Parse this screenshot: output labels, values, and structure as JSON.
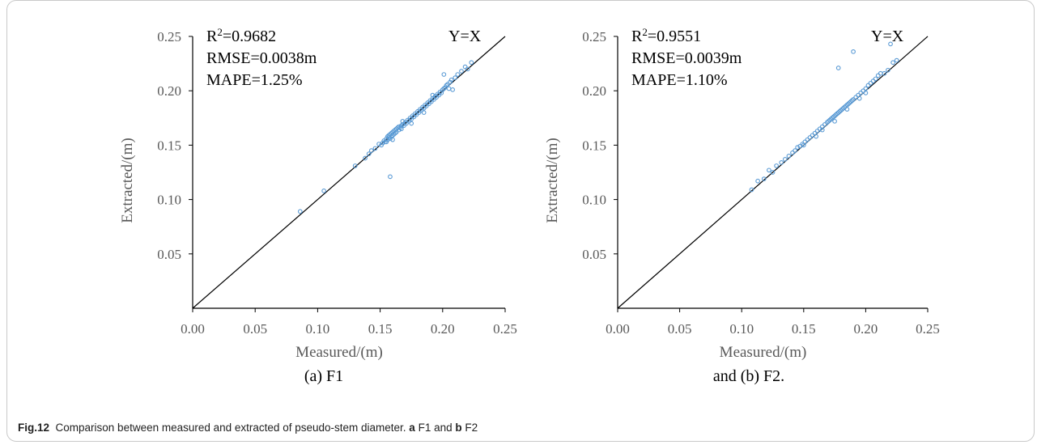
{
  "chart_data": [
    {
      "type": "scatter",
      "subcaption": "(a) F1",
      "xlabel": "Measured/(m)",
      "ylabel": "Extracted/(m)",
      "xlim": [
        0,
        0.25
      ],
      "ylim": [
        0,
        0.25
      ],
      "xticks": [
        "0.00",
        "0.05",
        "0.10",
        "0.15",
        "0.20",
        "0.25"
      ],
      "yticks": [
        "0.05",
        "0.10",
        "0.15",
        "0.20",
        "0.25"
      ],
      "reference_line": "Y=X",
      "stats": {
        "r2_prefix": "R",
        "r2_sup": "2",
        "r2_value": "=0.9682",
        "rmse": "RMSE=0.0038m",
        "mape": "MAPE=1.25%"
      },
      "point_color": "#5b9bd5",
      "points": [
        [
          0.086,
          0.089
        ],
        [
          0.105,
          0.108
        ],
        [
          0.13,
          0.131
        ],
        [
          0.138,
          0.138
        ],
        [
          0.141,
          0.142
        ],
        [
          0.143,
          0.145
        ],
        [
          0.146,
          0.147
        ],
        [
          0.149,
          0.151
        ],
        [
          0.151,
          0.15
        ],
        [
          0.152,
          0.152
        ],
        [
          0.153,
          0.154
        ],
        [
          0.154,
          0.153
        ],
        [
          0.155,
          0.156
        ],
        [
          0.155,
          0.153
        ],
        [
          0.156,
          0.158
        ],
        [
          0.156,
          0.155
        ],
        [
          0.157,
          0.157
        ],
        [
          0.157,
          0.159
        ],
        [
          0.158,
          0.121
        ],
        [
          0.158,
          0.156
        ],
        [
          0.158,
          0.16
        ],
        [
          0.159,
          0.158
        ],
        [
          0.159,
          0.161
        ],
        [
          0.16,
          0.159
        ],
        [
          0.16,
          0.162
        ],
        [
          0.161,
          0.16
        ],
        [
          0.161,
          0.163
        ],
        [
          0.162,
          0.161
        ],
        [
          0.162,
          0.164
        ],
        [
          0.163,
          0.165
        ],
        [
          0.163,
          0.162
        ],
        [
          0.164,
          0.166
        ],
        [
          0.165,
          0.164
        ],
        [
          0.165,
          0.167
        ],
        [
          0.166,
          0.166
        ],
        [
          0.167,
          0.168
        ],
        [
          0.167,
          0.165
        ],
        [
          0.168,
          0.169
        ],
        [
          0.169,
          0.168
        ],
        [
          0.17,
          0.171
        ],
        [
          0.171,
          0.17
        ],
        [
          0.172,
          0.173
        ],
        [
          0.173,
          0.172
        ],
        [
          0.174,
          0.175
        ],
        [
          0.175,
          0.174
        ],
        [
          0.176,
          0.177
        ],
        [
          0.177,
          0.176
        ],
        [
          0.178,
          0.179
        ],
        [
          0.179,
          0.178
        ],
        [
          0.18,
          0.181
        ],
        [
          0.181,
          0.18
        ],
        [
          0.182,
          0.183
        ],
        [
          0.183,
          0.182
        ],
        [
          0.184,
          0.185
        ],
        [
          0.185,
          0.184
        ],
        [
          0.186,
          0.187
        ],
        [
          0.187,
          0.186
        ],
        [
          0.188,
          0.189
        ],
        [
          0.189,
          0.188
        ],
        [
          0.19,
          0.191
        ],
        [
          0.191,
          0.19
        ],
        [
          0.192,
          0.193
        ],
        [
          0.193,
          0.192
        ],
        [
          0.194,
          0.195
        ],
        [
          0.195,
          0.194
        ],
        [
          0.196,
          0.197
        ],
        [
          0.197,
          0.196
        ],
        [
          0.198,
          0.199
        ],
        [
          0.199,
          0.198
        ],
        [
          0.2,
          0.201
        ],
        [
          0.201,
          0.202
        ],
        [
          0.202,
          0.203
        ],
        [
          0.203,
          0.205
        ],
        [
          0.204,
          0.206
        ],
        [
          0.205,
          0.202
        ],
        [
          0.206,
          0.208
        ],
        [
          0.207,
          0.21
        ],
        [
          0.208,
          0.201
        ],
        [
          0.21,
          0.212
        ],
        [
          0.212,
          0.215
        ],
        [
          0.215,
          0.218
        ],
        [
          0.218,
          0.222
        ],
        [
          0.22,
          0.22
        ],
        [
          0.223,
          0.226
        ],
        [
          0.201,
          0.215
        ],
        [
          0.175,
          0.17
        ],
        [
          0.168,
          0.172
        ],
        [
          0.185,
          0.18
        ],
        [
          0.192,
          0.196
        ],
        [
          0.16,
          0.155
        ]
      ]
    },
    {
      "type": "scatter",
      "subcaption": "and (b) F2.",
      "xlabel": "Measured/(m)",
      "ylabel": "Extracted/(m)",
      "xlim": [
        0,
        0.25
      ],
      "ylim": [
        0,
        0.25
      ],
      "xticks": [
        "0.00",
        "0.05",
        "0.10",
        "0.15",
        "0.20",
        "0.25"
      ],
      "yticks": [
        "0.05",
        "0.10",
        "0.15",
        "0.20",
        "0.25"
      ],
      "reference_line": "Y=X",
      "stats": {
        "r2_prefix": "R",
        "r2_sup": "2",
        "r2_value": "=0.9551",
        "rmse": "RMSE=0.0039m",
        "mape": "MAPE=1.10%"
      },
      "point_color": "#5b9bd5",
      "points": [
        [
          0.108,
          0.109
        ],
        [
          0.113,
          0.117
        ],
        [
          0.118,
          0.119
        ],
        [
          0.122,
          0.127
        ],
        [
          0.125,
          0.125
        ],
        [
          0.128,
          0.131
        ],
        [
          0.132,
          0.134
        ],
        [
          0.135,
          0.137
        ],
        [
          0.138,
          0.14
        ],
        [
          0.141,
          0.143
        ],
        [
          0.143,
          0.145
        ],
        [
          0.145,
          0.148
        ],
        [
          0.147,
          0.149
        ],
        [
          0.149,
          0.151
        ],
        [
          0.151,
          0.153
        ],
        [
          0.153,
          0.155
        ],
        [
          0.155,
          0.157
        ],
        [
          0.157,
          0.159
        ],
        [
          0.159,
          0.161
        ],
        [
          0.161,
          0.163
        ],
        [
          0.163,
          0.165
        ],
        [
          0.165,
          0.167
        ],
        [
          0.167,
          0.169
        ],
        [
          0.169,
          0.171
        ],
        [
          0.17,
          0.172
        ],
        [
          0.171,
          0.173
        ],
        [
          0.172,
          0.174
        ],
        [
          0.173,
          0.175
        ],
        [
          0.174,
          0.176
        ],
        [
          0.175,
          0.177
        ],
        [
          0.176,
          0.178
        ],
        [
          0.177,
          0.179
        ],
        [
          0.178,
          0.18
        ],
        [
          0.179,
          0.181
        ],
        [
          0.18,
          0.182
        ],
        [
          0.181,
          0.183
        ],
        [
          0.182,
          0.184
        ],
        [
          0.183,
          0.185
        ],
        [
          0.184,
          0.186
        ],
        [
          0.185,
          0.187
        ],
        [
          0.186,
          0.188
        ],
        [
          0.187,
          0.189
        ],
        [
          0.188,
          0.19
        ],
        [
          0.189,
          0.191
        ],
        [
          0.19,
          0.192
        ],
        [
          0.192,
          0.194
        ],
        [
          0.194,
          0.196
        ],
        [
          0.196,
          0.198
        ],
        [
          0.198,
          0.2
        ],
        [
          0.2,
          0.202
        ],
        [
          0.202,
          0.205
        ],
        [
          0.204,
          0.207
        ],
        [
          0.206,
          0.209
        ],
        [
          0.208,
          0.211
        ],
        [
          0.21,
          0.214
        ],
        [
          0.212,
          0.216
        ],
        [
          0.215,
          0.216
        ],
        [
          0.218,
          0.219
        ],
        [
          0.222,
          0.226
        ],
        [
          0.225,
          0.228
        ],
        [
          0.22,
          0.243
        ],
        [
          0.19,
          0.236
        ],
        [
          0.178,
          0.221
        ],
        [
          0.16,
          0.158
        ],
        [
          0.175,
          0.172
        ],
        [
          0.185,
          0.183
        ],
        [
          0.195,
          0.193
        ],
        [
          0.165,
          0.164
        ],
        [
          0.15,
          0.15
        ],
        [
          0.2,
          0.198
        ]
      ]
    }
  ],
  "caption": {
    "fig_label": "Fig.12",
    "text_1": "Comparison between measured and extracted of pseudo-stem diameter.",
    "a_label": "a",
    "text_2": "F1 and",
    "b_label": "b",
    "text_3": "F2"
  }
}
